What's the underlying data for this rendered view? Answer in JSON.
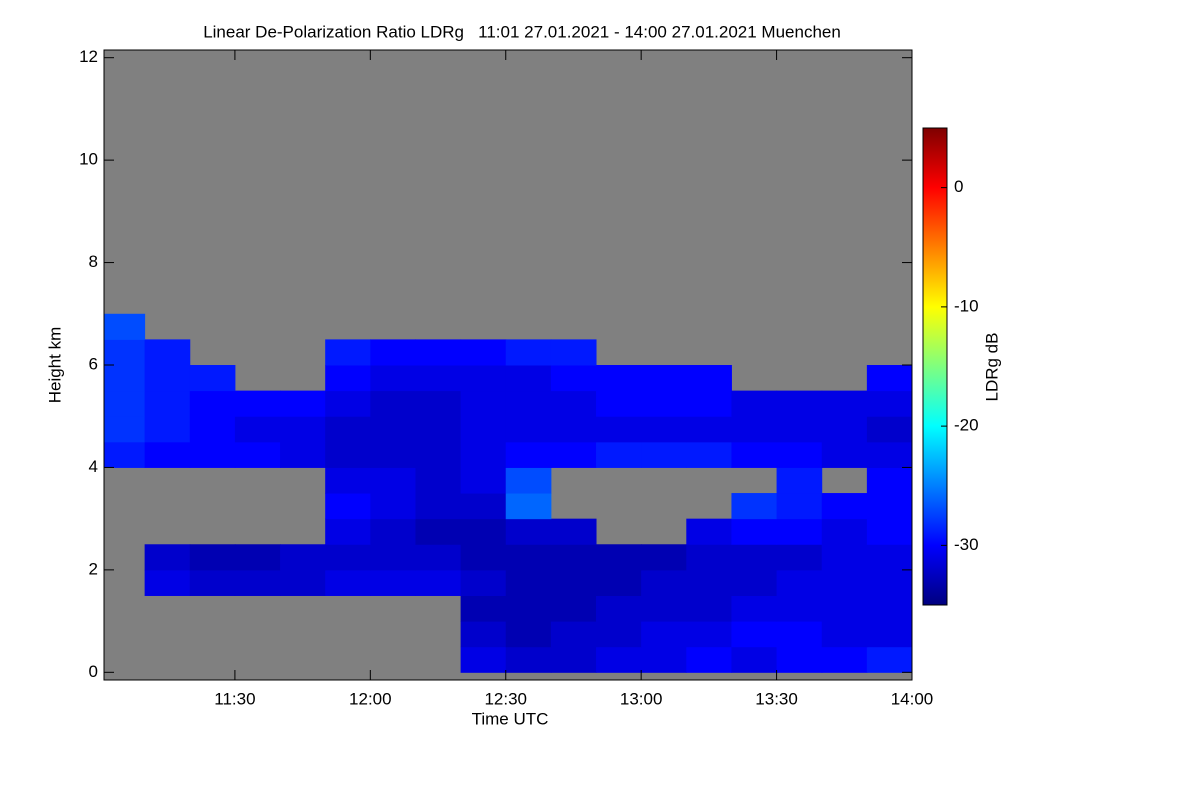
{
  "chart_data": {
    "type": "heatmap",
    "title": "Linear De-Polarization Ratio LDRg   11:01 27.01.2021 - 14:00 27.01.2021 Muenchen",
    "x_label": "Time UTC",
    "y_label": "Height km",
    "colorbar_label": "LDRg dB",
    "xlim": [
      661,
      840
    ],
    "xticks": [
      {
        "value": 690,
        "label": "11:30"
      },
      {
        "value": 720,
        "label": "12:00"
      },
      {
        "value": 750,
        "label": "12:30"
      },
      {
        "value": 780,
        "label": "13:00"
      },
      {
        "value": 810,
        "label": "13:30"
      },
      {
        "value": 840,
        "label": "14:00"
      }
    ],
    "ylim": [
      -0.15,
      12.15
    ],
    "yticks": [
      0,
      2,
      4,
      6,
      8,
      10,
      12
    ],
    "zlim": [
      -35,
      5
    ],
    "zticks": [
      0,
      -10,
      -20,
      -30
    ],
    "colormap": [
      "#00007f",
      "#0000ff",
      "#007fff",
      "#00ffff",
      "#7fff7f",
      "#ffff00",
      "#ff7f00",
      "#ff0000",
      "#7f0000"
    ],
    "missing_color": "#808080",
    "x": [
      665,
      675,
      685,
      695,
      705,
      715,
      725,
      735,
      745,
      755,
      765,
      775,
      785,
      795,
      805,
      815,
      825,
      835
    ],
    "y": [
      0.25,
      0.75,
      1.25,
      1.75,
      2.25,
      2.75,
      3.25,
      3.75,
      4.25,
      4.75,
      5.25,
      5.75,
      6.25,
      6.75
    ],
    "z": [
      [
        null,
        null,
        null,
        null,
        null,
        null,
        null,
        null,
        -31,
        -32,
        -32,
        -31,
        -31,
        -30,
        -31,
        -30,
        -30,
        -29
      ],
      [
        null,
        null,
        null,
        null,
        null,
        null,
        null,
        null,
        -32,
        -33,
        -32,
        -32,
        -31,
        -31,
        -30,
        -30,
        -31,
        -31
      ],
      [
        null,
        null,
        null,
        null,
        null,
        null,
        null,
        null,
        -33,
        -33,
        -33,
        -32,
        -32,
        -32,
        -31,
        -31,
        -31,
        -31
      ],
      [
        null,
        -31,
        -32,
        -32,
        -32,
        -31,
        -31,
        -31,
        -32,
        -33,
        -33,
        -33,
        -32,
        -32,
        -32,
        -31,
        -31,
        -31
      ],
      [
        null,
        -32,
        -33,
        -33,
        -32,
        -32,
        -32,
        -32,
        -33,
        -33,
        -33,
        -33,
        -33,
        -32,
        -32,
        -32,
        -31,
        -31
      ],
      [
        null,
        null,
        null,
        null,
        null,
        -31,
        -32,
        -33,
        -33,
        -32,
        -32,
        null,
        null,
        -31,
        -30,
        -30,
        -31,
        -30
      ],
      [
        null,
        null,
        null,
        null,
        null,
        -30,
        -31,
        -32,
        -32,
        -26,
        null,
        null,
        null,
        null,
        -28,
        -29,
        -30,
        -30
      ],
      [
        null,
        null,
        null,
        null,
        null,
        -31,
        -31,
        -32,
        -31,
        -27,
        null,
        null,
        null,
        null,
        null,
        -29,
        null,
        -30
      ],
      [
        -29,
        -30,
        -30,
        -30,
        -31,
        -32,
        -32,
        -32,
        -31,
        -30,
        -30,
        -29,
        -29,
        -29,
        -30,
        -30,
        -31,
        -31
      ],
      [
        -28,
        -29,
        -30,
        -31,
        -31,
        -32,
        -32,
        -32,
        -31,
        -31,
        -31,
        -31,
        -31,
        -31,
        -31,
        -31,
        -31,
        -32
      ],
      [
        -28,
        -29,
        -30,
        -30,
        -30,
        -31,
        -32,
        -32,
        -31,
        -31,
        -31,
        -30,
        -30,
        -30,
        -31,
        -31,
        -31,
        -31
      ],
      [
        -28,
        -29,
        -29,
        null,
        null,
        -30,
        -31,
        -31,
        -31,
        -31,
        -30,
        -30,
        -30,
        -30,
        null,
        null,
        null,
        -30
      ],
      [
        -28,
        -29,
        null,
        null,
        null,
        -29,
        -30,
        -30,
        -30,
        -29,
        -29,
        null,
        null,
        null,
        null,
        null,
        null,
        null
      ],
      [
        -27,
        null,
        null,
        null,
        null,
        null,
        null,
        null,
        null,
        null,
        null,
        null,
        null,
        null,
        null,
        null,
        null,
        null
      ]
    ]
  }
}
